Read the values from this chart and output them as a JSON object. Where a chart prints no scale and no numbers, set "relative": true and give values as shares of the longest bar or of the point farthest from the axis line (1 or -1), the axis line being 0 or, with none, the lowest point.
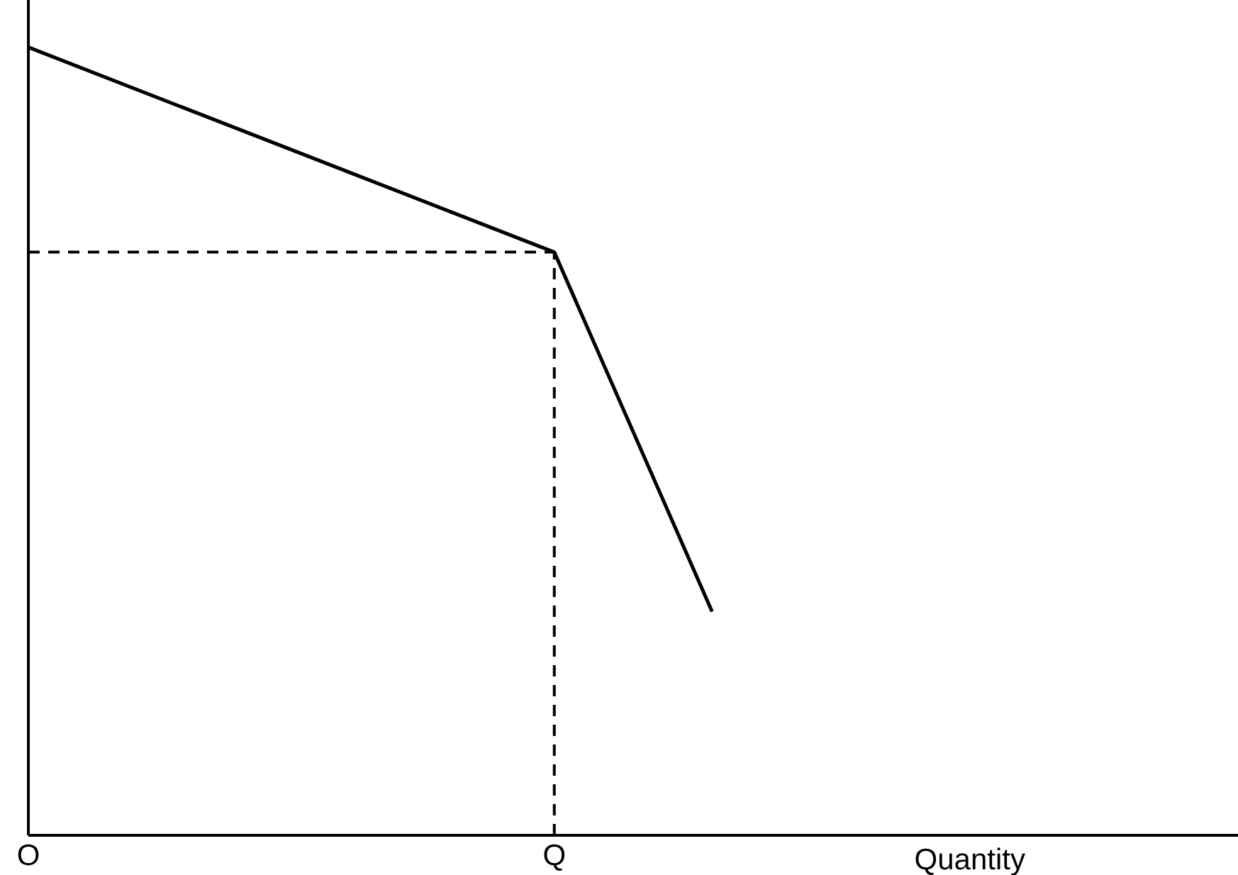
{
  "chart_data": {
    "type": "line",
    "relative": true,
    "xlabel": "Quantity",
    "categories": [
      "O",
      null,
      null,
      null,
      null,
      null,
      null,
      null,
      null,
      null,
      "Q",
      null,
      null,
      null,
      null,
      null,
      null,
      null,
      null,
      null,
      null,
      null,
      null,
      null
    ],
    "series": [
      {
        "color": "#000000",
        "values": [
          1,
          null,
          null,
          null,
          null,
          null,
          null,
          null,
          null,
          null,
          0.74,
          null,
          null,
          0.284,
          null,
          null,
          null,
          null,
          null,
          null,
          null,
          null,
          null,
          null
        ]
      }
    ],
    "ref_lines": [
      {
        "axis": "x",
        "value": "Q",
        "line_style": "dashed",
        "color": "#000000"
      },
      {
        "axis": "y",
        "value": 0.74,
        "line_style": "dashed",
        "color": "#000000"
      }
    ],
    "grid": false,
    "legend": false,
    "marker": "none",
    "line_style": "solid"
  }
}
